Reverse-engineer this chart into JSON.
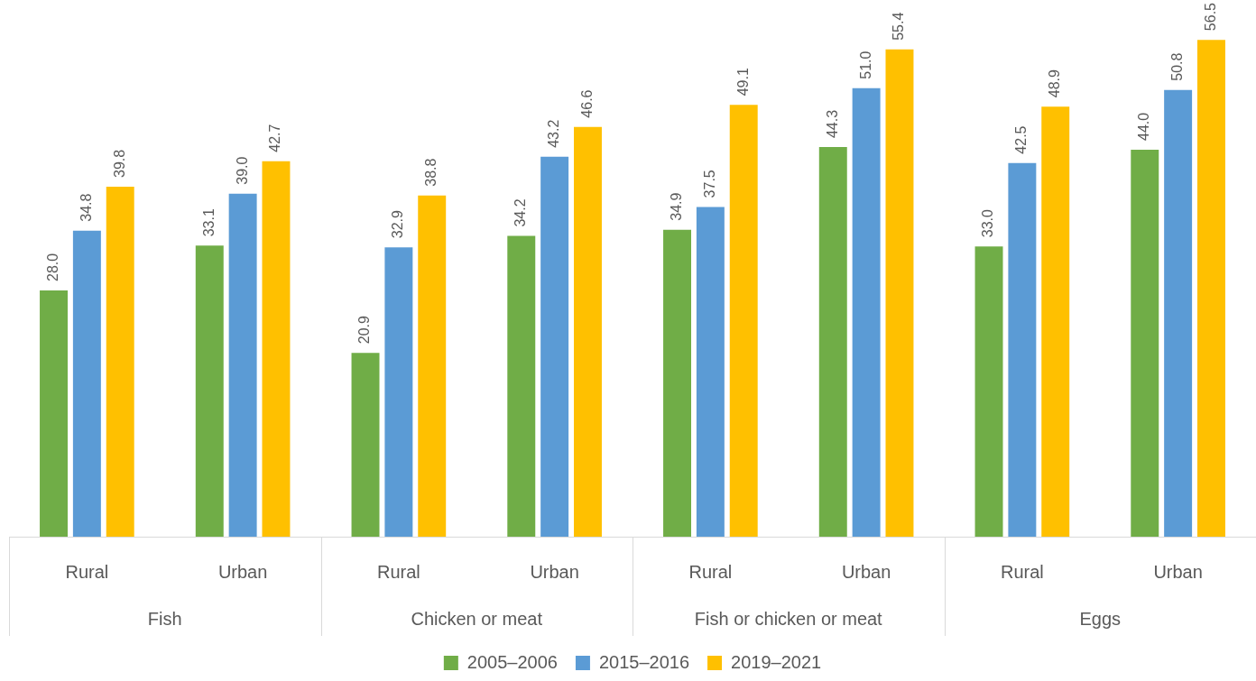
{
  "chart_data": {
    "type": "bar",
    "categories": [
      "Rural",
      "Urban",
      "Rural",
      "Urban",
      "Rural",
      "Urban",
      "Rural",
      "Urban"
    ],
    "annotations": [
      "Fish",
      "Chicken or meat",
      "Fish or chicken or meat",
      "Eggs"
    ],
    "series": [
      {
        "name": "2005–2006",
        "color": "#70ad47",
        "values": [
          28.0,
          33.1,
          20.9,
          34.2,
          34.9,
          44.3,
          33.0,
          44.0
        ],
        "value_labels": [
          "28.0",
          "33.1",
          "20.9",
          "34.2",
          "34.9",
          "44.3",
          "33.0",
          "44.0"
        ]
      },
      {
        "name": "2015–2016",
        "color": "#5b9bd5",
        "values": [
          34.8,
          39.0,
          32.9,
          43.2,
          37.5,
          51.0,
          42.5,
          50.8
        ],
        "value_labels": [
          "34.8",
          "39.0",
          "32.9",
          "43.2",
          "37.5",
          "51.0",
          "42.5",
          "50.8"
        ]
      },
      {
        "name": "2019–2021",
        "color": "#ffc000",
        "values": [
          39.8,
          42.7,
          38.8,
          46.6,
          49.1,
          55.4,
          48.9,
          56.5
        ],
        "value_labels": [
          "39.8",
          "42.7",
          "38.8",
          "46.6",
          "49.1",
          "55.4",
          "48.9",
          "56.5"
        ]
      }
    ],
    "legend": "bottom",
    "grid": false
  }
}
